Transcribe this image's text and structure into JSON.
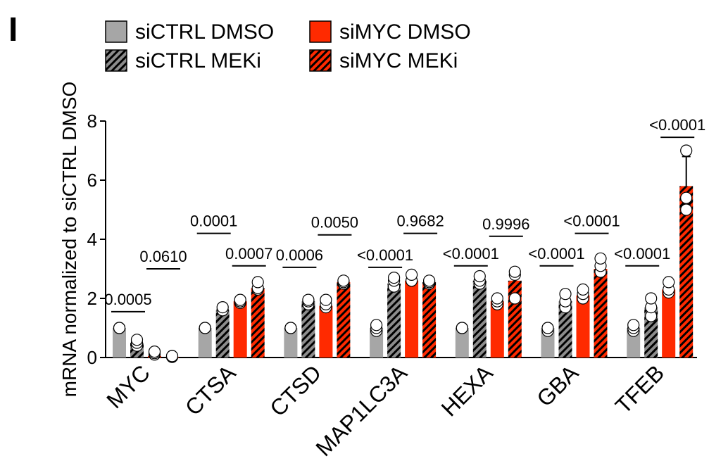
{
  "chart_data": {
    "type": "bar",
    "panel_label": "I",
    "ylabel": "mRNA normalized to siCTRL DMSO",
    "categories": [
      "MYC",
      "CTSA",
      "CTSD",
      "MAP1LC3A",
      "HEXA",
      "GBA",
      "TFEB"
    ],
    "ylim": [
      0,
      8
    ],
    "yticks": [
      0,
      2,
      4,
      6,
      8
    ],
    "series": [
      {
        "name": "siCTRL DMSO",
        "color": "#a6a6a6",
        "hatch": false,
        "values": [
          1.0,
          1.0,
          1.0,
          1.0,
          1.0,
          1.0,
          1.0
        ],
        "errors": [
          null,
          null,
          null,
          null,
          null,
          null,
          null
        ],
        "points": [
          [
            1.0,
            1.0,
            1.0
          ],
          [
            1.0,
            1.0,
            1.0
          ],
          [
            1.0,
            1.0,
            1.0
          ],
          [
            0.9,
            1.0,
            1.1
          ],
          [
            1.0,
            1.0,
            1.0
          ],
          [
            0.9,
            1.0,
            1.0
          ],
          [
            0.9,
            1.0,
            1.1
          ]
        ]
      },
      {
        "name": "siCTRL MEKi",
        "color": "#8c8c8c",
        "hatch": true,
        "values": [
          0.5,
          1.6,
          1.9,
          2.5,
          2.6,
          1.9,
          1.7
        ],
        "errors": [
          null,
          null,
          null,
          null,
          null,
          null,
          null
        ],
        "points": [
          [
            0.4,
            0.5,
            0.6
          ],
          [
            1.6,
            1.6,
            1.7
          ],
          [
            1.8,
            1.9,
            1.95
          ],
          [
            2.4,
            2.6,
            2.7
          ],
          [
            2.5,
            2.6,
            2.75
          ],
          [
            1.7,
            1.9,
            2.15
          ],
          [
            1.4,
            1.7,
            2.0
          ]
        ]
      },
      {
        "name": "siMYC DMSO",
        "color": "#ff2a00",
        "hatch": false,
        "values": [
          0.05,
          1.9,
          1.75,
          2.6,
          1.9,
          2.1,
          2.3
        ],
        "errors": [
          null,
          null,
          null,
          null,
          null,
          null,
          0.25
        ],
        "points": [
          [
            0.1,
            0.15,
            0.2
          ],
          [
            1.85,
            1.9,
            1.95
          ],
          [
            1.7,
            1.8,
            1.95
          ],
          [
            2.6,
            2.6,
            2.8
          ],
          [
            1.8,
            1.9,
            2.0
          ],
          [
            2.0,
            2.15,
            2.3
          ],
          [
            2.2,
            2.3,
            2.55
          ]
        ]
      },
      {
        "name": "siMYC MEKi",
        "color": "#ff2a00",
        "hatch": true,
        "values": [
          0.02,
          2.35,
          2.55,
          2.55,
          2.6,
          3.0,
          5.8
        ],
        "errors": [
          null,
          null,
          null,
          null,
          null,
          null,
          1.0
        ],
        "points": [
          [
            0.02,
            0.05,
            0.05
          ],
          [
            2.3,
            2.35,
            2.55
          ],
          [
            2.5,
            2.55,
            2.6
          ],
          [
            2.5,
            2.55,
            2.6
          ],
          [
            2.0,
            2.8,
            2.9
          ],
          [
            2.9,
            3.1,
            3.35
          ],
          [
            5.0,
            5.4,
            7.0
          ]
        ]
      }
    ],
    "annotations": [
      {
        "category": 0,
        "from": 0,
        "to": 1,
        "y": 1.55,
        "text": "0.0005"
      },
      {
        "category": 0,
        "from": 2,
        "to": 3,
        "y": 3.0,
        "text": "0.0610"
      },
      {
        "category": 1,
        "from": 0,
        "to": 1,
        "y": 4.2,
        "text": "0.0001"
      },
      {
        "category": 1,
        "from": 2,
        "to": 3,
        "y": 3.1,
        "text": "0.0007"
      },
      {
        "category": 2,
        "from": 0,
        "to": 1,
        "y": 3.05,
        "text": "0.0006"
      },
      {
        "category": 2,
        "from": 2,
        "to": 3,
        "y": 4.15,
        "text": "0.0050"
      },
      {
        "category": 3,
        "from": 0,
        "to": 1,
        "y": 3.05,
        "text": "<0.0001"
      },
      {
        "category": 3,
        "from": 2,
        "to": 3,
        "y": 4.2,
        "text": "0.9682"
      },
      {
        "category": 4,
        "from": 0,
        "to": 1,
        "y": 3.1,
        "text": "<0.0001"
      },
      {
        "category": 4,
        "from": 2,
        "to": 3,
        "y": 4.1,
        "text": "0.9996"
      },
      {
        "category": 5,
        "from": 0,
        "to": 1,
        "y": 3.1,
        "text": "<0.0001"
      },
      {
        "category": 5,
        "from": 2,
        "to": 3,
        "y": 4.2,
        "text": "<0.0001"
      },
      {
        "category": 6,
        "from": 0,
        "to": 1,
        "y": 3.1,
        "text": "<0.0001"
      },
      {
        "category": 6,
        "from": 2,
        "to": 3,
        "y": 7.45,
        "text": "<0.0001"
      }
    ]
  }
}
